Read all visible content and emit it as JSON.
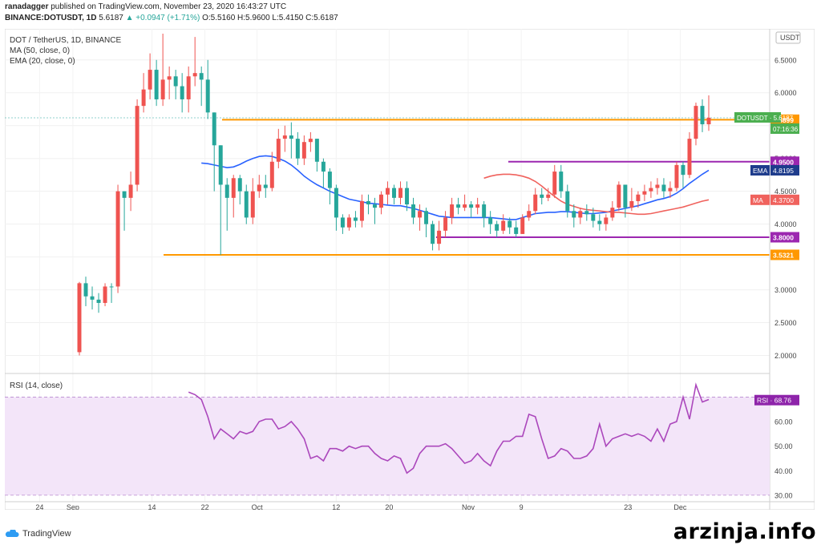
{
  "header": {
    "publisher": "ranadagger",
    "published_text": "published on TradingView.com, November 23, 2020 16:43:27 UTC",
    "symbol_line": "BINANCE:DOTUSDT, 1D",
    "price": "5.6187",
    "change": "▲ +0.0947 (+1.71%)",
    "ohlc": "O:5.5160 H:5.9600 L:5.4150 C:5.6187"
  },
  "legend": {
    "title": "DOT / TetherUS, 1D, BINANCE",
    "ma": "MA (50, close, 0)",
    "ema": "EMA (20, close, 0)",
    "rsi": "RSI (14, close)"
  },
  "footer": {
    "brand": "TradingView",
    "watermark": "arzinja.info"
  },
  "colors": {
    "up": "#26a69a",
    "down": "#ef5350",
    "ema": "#2962ff",
    "ma": "#f0625d",
    "support": "#ff9800",
    "range": "#9c27b0",
    "rsi_line": "#ab47bc",
    "rsi_band": "#f3e5f9"
  },
  "chart_data": [
    {
      "type": "candlestick",
      "title": "DOT / TetherUS, 1D, BINANCE",
      "ylabel": "USDT",
      "ylim": [
        1.75,
        6.9
      ],
      "x_ticks": [
        "24",
        "Sep",
        "14",
        "22",
        "Oct",
        "12",
        "20",
        "Nov",
        "9",
        "23",
        "Dec"
      ],
      "y_ticks": [
        "2.0000",
        "2.5000",
        "3.0000",
        "3.5000",
        "4.0000",
        "4.5000",
        "5.0000",
        "5.5000",
        "6.0000",
        "6.5000"
      ],
      "last_price_label": "DOTUSDT · 5.6187",
      "countdown": "07:16:36",
      "horizontal_levels": [
        {
          "value": 5.5899,
          "label": "5.5899",
          "kind": "support"
        },
        {
          "value": 4.95,
          "label": "4.9500",
          "kind": "range"
        },
        {
          "value": 3.8,
          "label": "3.8000",
          "kind": "range"
        },
        {
          "value": 3.5321,
          "label": "3.5321",
          "kind": "support"
        }
      ],
      "indicator_labels": [
        {
          "name": "EMA",
          "value": "4.8195"
        },
        {
          "name": "MA",
          "value": "4.3700"
        }
      ],
      "series": [
        {
          "name": "DOTUSDT",
          "ohlc": [
            [
              3.1,
              3.12,
              2.0,
              2.05
            ],
            [
              2.9,
              3.2,
              2.75,
              3.1
            ],
            [
              2.85,
              3.05,
              2.7,
              2.9
            ],
            [
              2.8,
              2.95,
              2.65,
              2.85
            ],
            [
              3.05,
              3.1,
              2.75,
              2.8
            ],
            [
              3.05,
              3.1,
              2.8,
              3.05
            ],
            [
              4.5,
              4.6,
              2.95,
              3.05
            ],
            [
              4.4,
              4.5,
              3.9,
              4.5
            ],
            [
              4.6,
              4.8,
              4.2,
              4.4
            ],
            [
              5.8,
              5.9,
              4.5,
              4.6
            ],
            [
              6.05,
              6.3,
              5.7,
              5.8
            ],
            [
              6.35,
              6.6,
              5.9,
              6.05
            ],
            [
              5.9,
              6.5,
              5.8,
              6.35
            ],
            [
              6.2,
              6.9,
              5.8,
              5.9
            ],
            [
              6.25,
              6.4,
              5.9,
              6.2
            ],
            [
              6.1,
              6.35,
              5.9,
              6.25
            ],
            [
              5.9,
              6.3,
              5.7,
              6.1
            ],
            [
              6.25,
              6.4,
              5.7,
              5.9
            ],
            [
              6.3,
              6.85,
              6.1,
              6.25
            ],
            [
              6.2,
              6.4,
              5.8,
              6.3
            ],
            [
              5.7,
              6.5,
              5.6,
              6.2
            ],
            [
              5.2,
              5.7,
              4.5,
              5.7
            ],
            [
              4.6,
              5.2,
              3.53,
              5.2
            ],
            [
              4.4,
              4.7,
              3.9,
              4.6
            ],
            [
              4.7,
              4.75,
              4.1,
              4.4
            ],
            [
              4.5,
              4.75,
              4.3,
              4.7
            ],
            [
              4.1,
              4.6,
              4.0,
              4.5
            ],
            [
              4.5,
              4.7,
              4.0,
              4.1
            ],
            [
              4.6,
              4.75,
              4.4,
              4.5
            ],
            [
              4.55,
              4.75,
              4.4,
              4.6
            ],
            [
              4.95,
              5.1,
              4.5,
              4.55
            ],
            [
              5.3,
              5.45,
              4.85,
              4.95
            ],
            [
              5.35,
              5.5,
              5.1,
              5.3
            ],
            [
              5.3,
              5.55,
              5.0,
              5.35
            ],
            [
              5.0,
              5.4,
              4.9,
              5.3
            ],
            [
              5.25,
              5.35,
              4.9,
              5.0
            ],
            [
              5.3,
              5.4,
              5.1,
              5.25
            ],
            [
              4.95,
              5.3,
              4.8,
              5.3
            ],
            [
              4.8,
              5.0,
              4.55,
              4.95
            ],
            [
              4.55,
              4.85,
              4.3,
              4.8
            ],
            [
              4.1,
              4.6,
              3.9,
              4.55
            ],
            [
              3.95,
              4.15,
              3.85,
              4.1
            ],
            [
              4.1,
              4.15,
              3.9,
              3.95
            ],
            [
              4.05,
              4.2,
              3.95,
              4.1
            ],
            [
              4.35,
              4.45,
              3.95,
              4.05
            ],
            [
              4.3,
              4.45,
              4.15,
              4.35
            ],
            [
              4.25,
              4.4,
              4.0,
              4.3
            ],
            [
              4.45,
              4.5,
              4.15,
              4.25
            ],
            [
              4.55,
              4.65,
              4.3,
              4.45
            ],
            [
              4.4,
              4.6,
              4.3,
              4.55
            ],
            [
              4.55,
              4.65,
              4.3,
              4.4
            ],
            [
              4.3,
              4.65,
              4.2,
              4.55
            ],
            [
              4.1,
              4.4,
              4.0,
              4.3
            ],
            [
              4.2,
              4.3,
              3.9,
              4.1
            ],
            [
              4.0,
              4.25,
              3.8,
              4.2
            ],
            [
              3.7,
              4.05,
              3.6,
              4.0
            ],
            [
              3.9,
              4.05,
              3.6,
              3.7
            ],
            [
              4.1,
              4.2,
              3.8,
              3.9
            ],
            [
              4.3,
              4.4,
              4.0,
              4.1
            ],
            [
              4.25,
              4.4,
              4.15,
              4.3
            ],
            [
              4.3,
              4.45,
              4.2,
              4.25
            ],
            [
              4.25,
              4.35,
              4.1,
              4.3
            ],
            [
              4.3,
              4.4,
              4.15,
              4.25
            ],
            [
              4.1,
              4.35,
              3.95,
              4.3
            ],
            [
              4.0,
              4.2,
              3.85,
              4.1
            ],
            [
              3.9,
              4.05,
              3.8,
              4.0
            ],
            [
              4.05,
              4.15,
              3.85,
              3.9
            ],
            [
              3.95,
              4.1,
              3.85,
              4.05
            ],
            [
              3.85,
              4.05,
              3.8,
              3.95
            ],
            [
              4.1,
              4.15,
              3.85,
              3.85
            ],
            [
              4.2,
              4.3,
              4.05,
              4.1
            ],
            [
              4.45,
              4.55,
              4.15,
              4.2
            ],
            [
              4.4,
              4.55,
              4.3,
              4.45
            ],
            [
              4.45,
              4.55,
              4.35,
              4.4
            ],
            [
              4.8,
              4.9,
              4.4,
              4.45
            ],
            [
              4.5,
              4.9,
              4.4,
              4.8
            ],
            [
              4.2,
              4.6,
              4.1,
              4.5
            ],
            [
              4.1,
              4.3,
              3.95,
              4.2
            ],
            [
              4.2,
              4.25,
              4.0,
              4.1
            ],
            [
              4.15,
              4.3,
              4.05,
              4.2
            ],
            [
              4.05,
              4.25,
              3.95,
              4.15
            ],
            [
              4.0,
              4.15,
              3.9,
              4.05
            ],
            [
              4.1,
              4.15,
              3.9,
              4.0
            ],
            [
              4.25,
              4.35,
              4.05,
              4.1
            ],
            [
              4.6,
              4.65,
              4.2,
              4.25
            ],
            [
              4.25,
              4.6,
              4.1,
              4.6
            ],
            [
              4.35,
              4.55,
              4.2,
              4.25
            ],
            [
              4.45,
              4.5,
              4.25,
              4.35
            ],
            [
              4.5,
              4.6,
              4.35,
              4.45
            ],
            [
              4.55,
              4.65,
              4.4,
              4.5
            ],
            [
              4.6,
              4.7,
              4.45,
              4.55
            ],
            [
              4.5,
              4.7,
              4.4,
              4.6
            ],
            [
              4.55,
              4.65,
              4.4,
              4.5
            ],
            [
              4.9,
              4.95,
              4.5,
              4.55
            ],
            [
              4.75,
              4.95,
              4.55,
              4.9
            ],
            [
              5.3,
              5.4,
              4.7,
              4.75
            ],
            [
              5.8,
              5.85,
              5.2,
              5.3
            ],
            [
              5.52,
              5.9,
              5.4,
              5.8
            ],
            [
              5.62,
              5.96,
              5.42,
              5.52
            ]
          ]
        },
        {
          "name": "EMA (20, close, 0)",
          "values": [
            4.93,
            4.92,
            4.9,
            4.88,
            4.86,
            4.87,
            4.91,
            4.96,
            5.0,
            5.03,
            5.04,
            5.03,
            5.0,
            4.96,
            4.9,
            4.82,
            4.73,
            4.66,
            4.6,
            4.55,
            4.5,
            4.46,
            4.42,
            4.38,
            4.36,
            4.34,
            4.32,
            4.31,
            4.3,
            4.29,
            4.28,
            4.28,
            4.26,
            4.24,
            4.21,
            4.18,
            4.15,
            4.12,
            4.11,
            4.1,
            4.1,
            4.1,
            4.1,
            4.1,
            4.1,
            4.1,
            4.09,
            4.08,
            4.07,
            4.07,
            4.1,
            4.13,
            4.16,
            4.17,
            4.18,
            4.18,
            4.19,
            4.19,
            4.18,
            4.17,
            4.16,
            4.16,
            4.17,
            4.18,
            4.2,
            4.22,
            4.24,
            4.26,
            4.28,
            4.31,
            4.34,
            4.37,
            4.39,
            4.42,
            4.47,
            4.54,
            4.62,
            4.69,
            4.76,
            4.82
          ]
        },
        {
          "name": "MA (50, close, 0)",
          "values": [
            4.7,
            4.73,
            4.75,
            4.76,
            4.76,
            4.75,
            4.73,
            4.7,
            4.65,
            4.58,
            4.5,
            4.42,
            4.35,
            4.3,
            4.27,
            4.24,
            4.22,
            4.21,
            4.2,
            4.19,
            4.18,
            4.18,
            4.17,
            4.16,
            4.15,
            4.15,
            4.16,
            4.18,
            4.2,
            4.22,
            4.24,
            4.26,
            4.29,
            4.32,
            4.35,
            4.37
          ]
        }
      ]
    },
    {
      "type": "line",
      "title": "RSI (14, close)",
      "ylim": [
        28,
        77
      ],
      "band": [
        30,
        70
      ],
      "y_ticks": [
        "30.00",
        "40.00",
        "50.00",
        "60.00"
      ],
      "current_label": "RSI · 68.76",
      "series": [
        {
          "name": "RSI",
          "values": [
            72,
            71,
            69,
            62,
            53,
            57,
            55,
            53,
            56,
            55,
            56,
            60,
            61,
            61,
            57,
            58,
            60,
            57,
            53,
            45,
            46,
            44,
            49,
            49,
            48,
            50,
            49,
            50,
            50,
            47,
            45,
            44,
            46,
            45,
            39,
            41,
            47,
            50,
            50,
            50,
            51,
            49,
            46,
            43,
            44,
            47,
            44,
            42,
            48,
            52,
            52,
            54,
            54,
            63,
            62,
            53,
            45,
            46,
            49,
            48,
            45,
            45,
            46,
            49,
            59,
            50,
            53,
            54,
            55,
            54,
            55,
            54,
            52,
            57,
            52,
            59,
            60,
            70,
            61,
            75,
            68,
            69
          ]
        }
      ]
    }
  ]
}
